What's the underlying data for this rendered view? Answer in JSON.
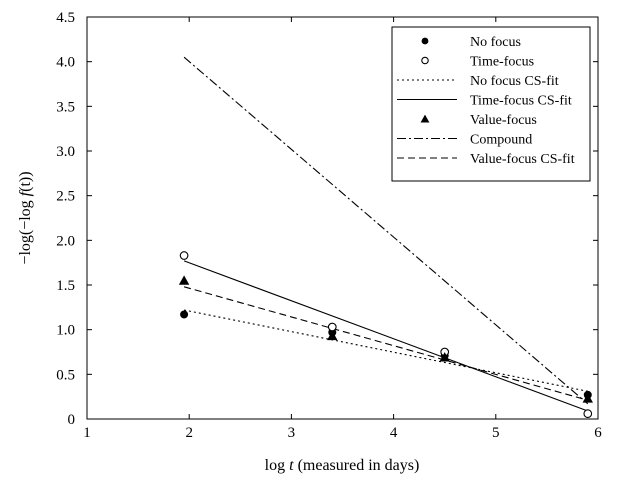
{
  "chart_data": {
    "type": "scatter",
    "title": "",
    "xlabel": {
      "prefix": "log ",
      "var": "t",
      "suffix": " (measured in days)"
    },
    "ylabel": {
      "prefix": "−log(−log ",
      "var": "f",
      "suffix": "(t))"
    },
    "xlim": [
      1,
      6
    ],
    "ylim": [
      0,
      4.5
    ],
    "xticks": [
      "1",
      "2",
      "3",
      "4",
      "5",
      "6"
    ],
    "yticks": [
      "0",
      "0.5",
      "1.0",
      "1.5",
      "2.0",
      "2.5",
      "3.0",
      "3.5",
      "4.0",
      "4.5"
    ],
    "grid": false,
    "legend_position": "top-right",
    "x": [
      1.95,
      3.4,
      4.5,
      5.9
    ],
    "series": [
      {
        "name": "No focus",
        "kind": "points",
        "marker": "filled-circle",
        "y": [
          1.17,
          0.97,
          0.71,
          0.27
        ]
      },
      {
        "name": "Time-focus",
        "kind": "points",
        "marker": "open-circle",
        "y": [
          1.83,
          1.03,
          0.75,
          0.06
        ]
      },
      {
        "name": "No focus CS-fit",
        "kind": "line",
        "dash": "dotted",
        "points": [
          [
            1.95,
            1.22
          ],
          [
            5.9,
            0.31
          ]
        ]
      },
      {
        "name": "Time-focus CS-fit",
        "kind": "line",
        "dash": "solid",
        "points": [
          [
            1.95,
            1.77
          ],
          [
            5.9,
            0.09
          ]
        ]
      },
      {
        "name": "Value-focus",
        "kind": "points",
        "marker": "filled-triangle",
        "y": [
          1.55,
          0.93,
          0.69,
          0.23
        ]
      },
      {
        "name": "Compound",
        "kind": "line",
        "dash": "dashdot",
        "points": [
          [
            1.95,
            4.05
          ],
          [
            5.9,
            0.17
          ]
        ]
      },
      {
        "name": "Value-focus CS-fit",
        "kind": "line",
        "dash": "dashed",
        "points": [
          [
            1.95,
            1.48
          ],
          [
            5.9,
            0.21
          ]
        ]
      }
    ]
  }
}
